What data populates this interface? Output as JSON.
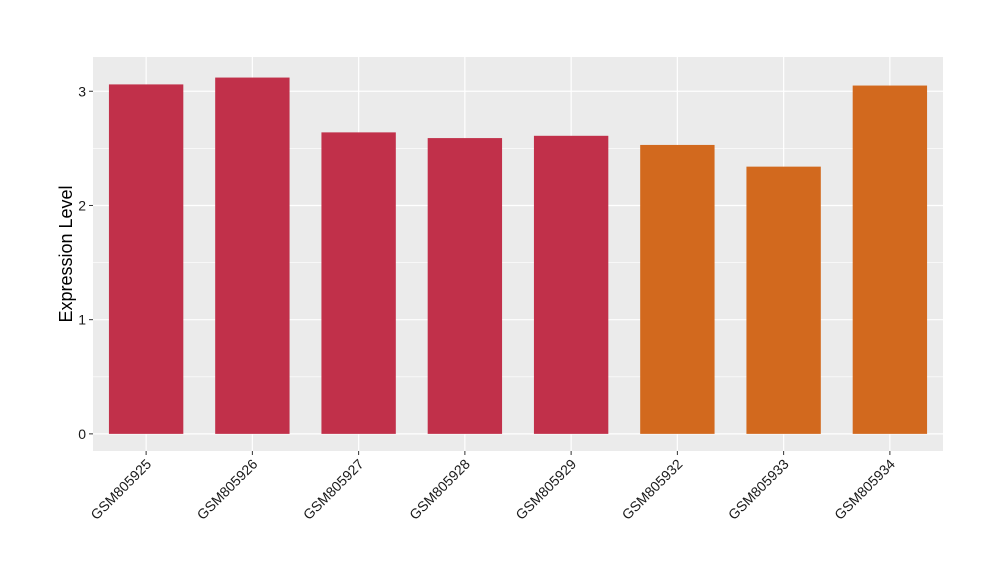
{
  "chart_data": {
    "type": "bar",
    "title": "",
    "xlabel": "",
    "ylabel": "Expression Level",
    "categories": [
      "GSM805925",
      "GSM805926",
      "GSM805927",
      "GSM805928",
      "GSM805929",
      "GSM805932",
      "GSM805933",
      "GSM805934"
    ],
    "values": [
      3.06,
      3.12,
      2.64,
      2.59,
      2.61,
      2.53,
      2.34,
      3.05
    ],
    "bar_colors": [
      "#c1304a",
      "#c1304a",
      "#c1304a",
      "#c1304a",
      "#c1304a",
      "#d2691e",
      "#d2691e",
      "#d2691e"
    ],
    "ylim": [
      -0.15,
      3.3
    ],
    "yticks": [
      0,
      1,
      2,
      3
    ],
    "grid": true,
    "legend": "none",
    "panel_background": "#ebebeb",
    "gridline_color": "#ffffff"
  }
}
